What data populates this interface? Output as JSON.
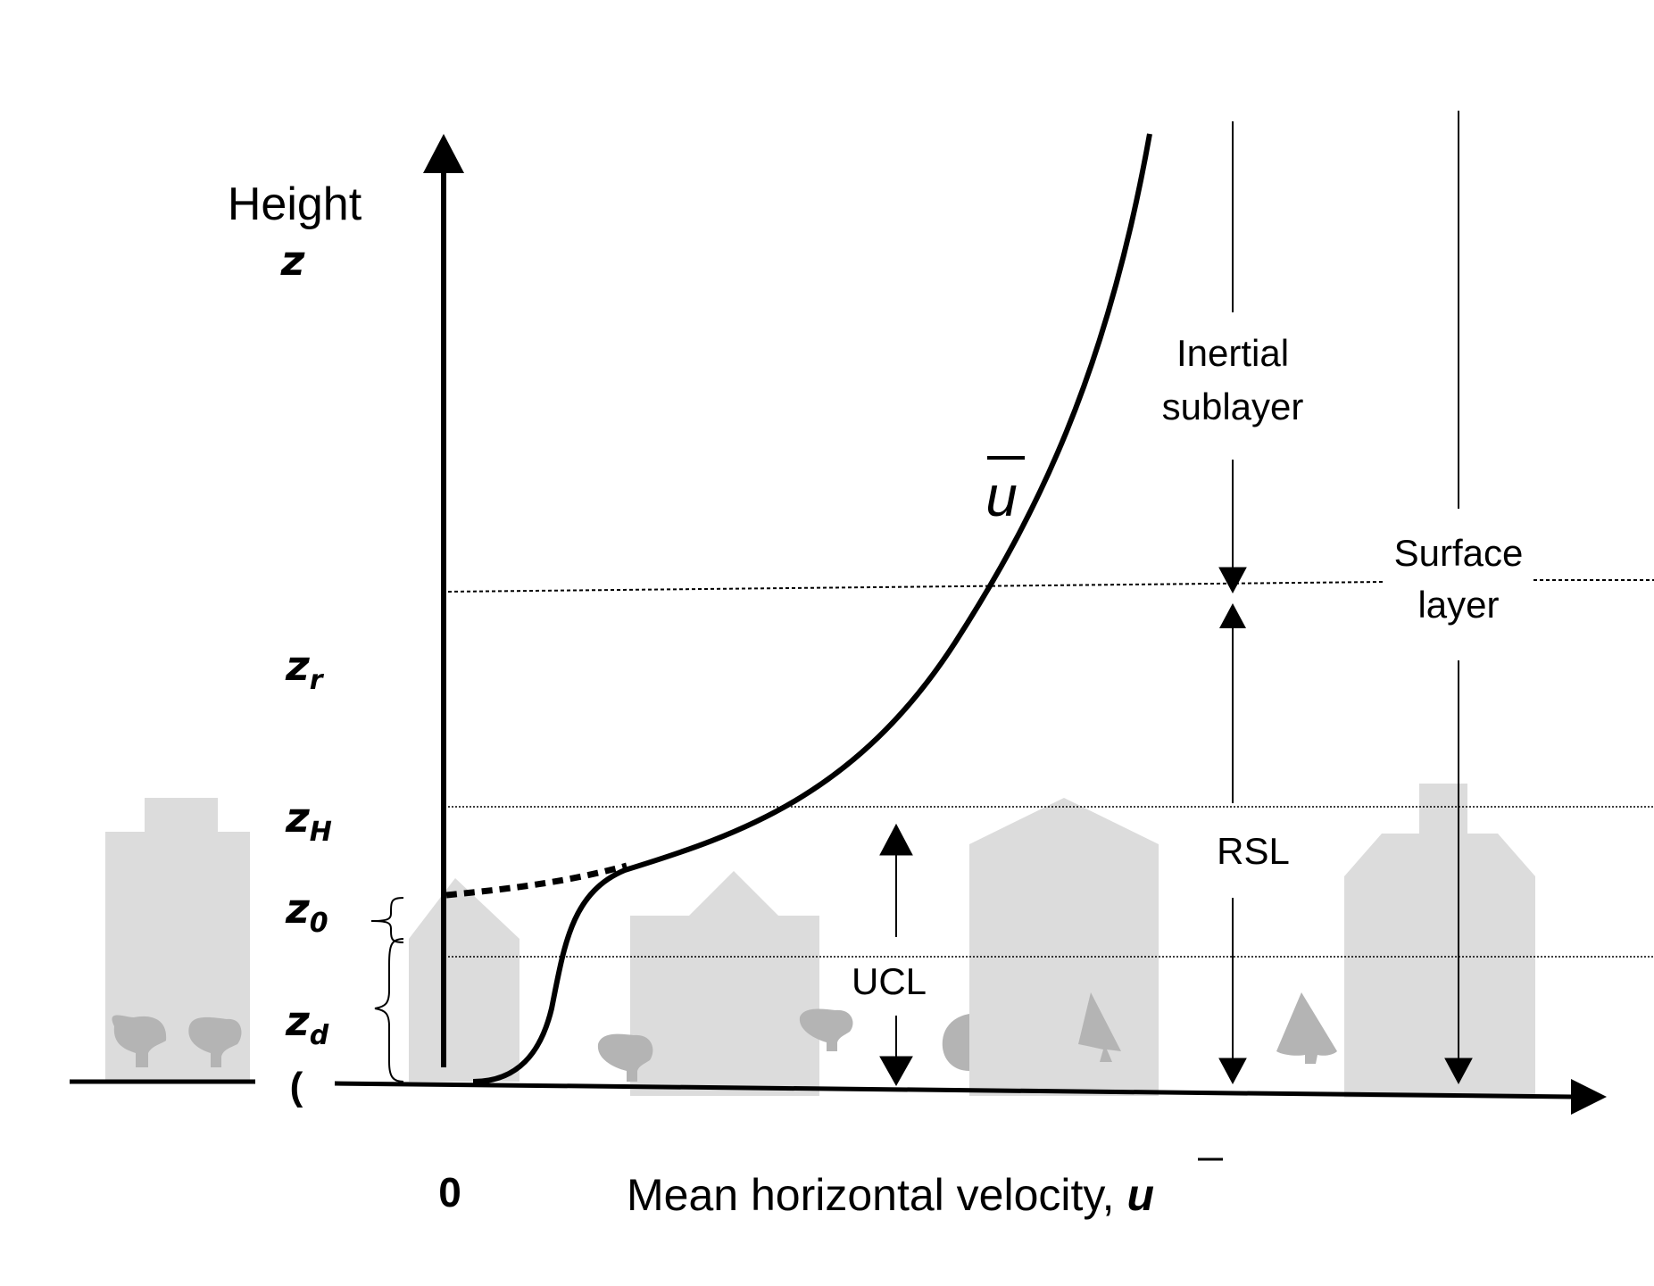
{
  "diagram": {
    "y_axis": {
      "title_line1": "Height",
      "title_line2": "z"
    },
    "x_axis": {
      "zero": "0",
      "title_text": "Mean horizontal velocity, ",
      "title_symbol": "u"
    },
    "curve_label": "u",
    "z_labels": [
      {
        "base": "z",
        "sub": "r"
      },
      {
        "base": "z",
        "sub": "H"
      },
      {
        "base": "z",
        "sub": "0"
      },
      {
        "base": "z",
        "sub": "d"
      }
    ],
    "ground_mark": "(",
    "layers": {
      "inertial_line1": "Inertial",
      "inertial_line2": "sublayer",
      "surface_line1": "Surface",
      "surface_line2": "layer",
      "rsl": "RSL",
      "ucl": "UCL"
    },
    "colors": {
      "ink": "#000000",
      "buildings": "#dcdcdc",
      "trees": "#b4b4b4"
    }
  }
}
